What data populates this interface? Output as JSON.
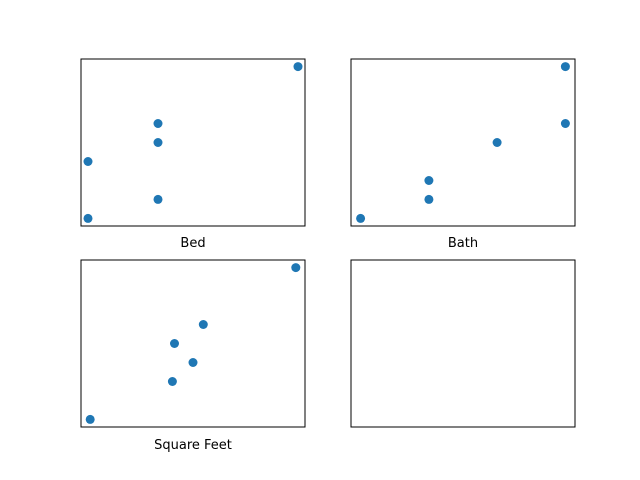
{
  "chart_data": [
    {
      "type": "scatter",
      "xlabel": "Bed",
      "x": [
        2,
        2,
        3,
        3,
        3,
        5
      ],
      "y": [
        1,
        4,
        2,
        5,
        6,
        9
      ],
      "xlim": [
        1.9,
        5.1
      ],
      "ylim": [
        0.6,
        9.4
      ],
      "ticks": "hidden",
      "marker_color": "#1f77b4"
    },
    {
      "type": "scatter",
      "xlabel": "Bath",
      "x": [
        1,
        1.5,
        1.5,
        2,
        2.5,
        2.5
      ],
      "y": [
        1,
        2,
        3,
        5,
        6,
        9
      ],
      "xlim": [
        0.93,
        2.57
      ],
      "ylim": [
        0.6,
        9.4
      ],
      "ticks": "hidden",
      "marker_color": "#1f77b4"
    },
    {
      "type": "scatter",
      "xlabel": "Square Feet",
      "x": [
        1000,
        1800,
        1820,
        2000,
        2100,
        3000
      ],
      "y": [
        1,
        3,
        5,
        4,
        6,
        9
      ],
      "xlim": [
        910,
        3090
      ],
      "ylim": [
        0.6,
        9.4
      ],
      "ticks": "hidden",
      "marker_color": "#1f77b4"
    },
    {
      "type": "scatter",
      "xlabel": "",
      "x": [],
      "y": [],
      "ticks": "hidden"
    }
  ]
}
